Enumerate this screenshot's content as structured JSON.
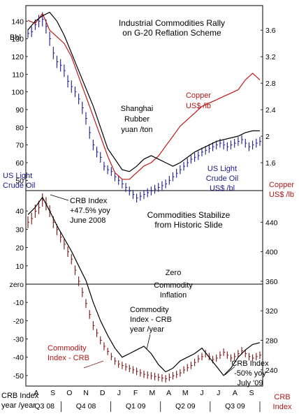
{
  "colors": {
    "oil": "#1a1a8c",
    "copper": "#c01818",
    "rubber": "#000000",
    "crb": "#7a1010",
    "crb_yoy": "#000000",
    "axis": "#000000"
  },
  "chart_data": [
    {
      "type": "line",
      "title": [
        "Industrial Commodities Rally",
        "on G-20 Reflation Scheme"
      ],
      "ylabel_left": "Bbl",
      "y_left_ticks": [
        "140",
        "130",
        "120",
        "110",
        "100",
        "90",
        "80",
        "70",
        "60",
        "50"
      ],
      "y_left_range": [
        45,
        148
      ],
      "y_right_ticks": [
        "3.6",
        "3.2",
        "2.8",
        "2.4",
        "2",
        "1.6"
      ],
      "y_right_range": [
        1.2,
        3.95
      ],
      "ylabel_right": [
        "Copper",
        "US$ /lb"
      ],
      "ylabel_left_bottom": [
        "US Light",
        "Crude Oil"
      ],
      "annotations": {
        "copper": [
          "Copper",
          "US$ /lb"
        ],
        "rubber": [
          "Shanghai",
          "Rubber",
          "yuan /ton"
        ],
        "oil": [
          "US Light",
          "Crude Oil",
          "US$ /bl"
        ]
      },
      "series": [
        {
          "name": "US Light Crude Oil US$ /bl",
          "axis": "left",
          "style": "hlc-bars",
          "x": [
            0,
            1,
            2,
            3,
            4,
            5,
            6,
            7,
            8,
            9,
            10,
            11,
            12,
            13,
            14,
            15,
            16,
            17,
            18,
            19,
            20,
            21,
            22,
            23,
            24,
            25,
            26,
            27,
            28,
            29,
            30,
            31,
            32,
            33,
            34,
            35,
            36,
            37,
            38,
            39,
            40,
            41,
            42,
            43,
            44,
            45,
            46,
            47,
            48,
            49,
            50,
            51,
            52,
            53,
            54,
            55,
            56,
            57,
            58,
            59,
            60,
            61,
            62,
            63,
            64
          ],
          "close": [
            133,
            134,
            138,
            140,
            141,
            137,
            130,
            122,
            117,
            115,
            112,
            106,
            103,
            100,
            96,
            91,
            85,
            77,
            70,
            66,
            63,
            58,
            56,
            55,
            52,
            50,
            48,
            46,
            44,
            42,
            40,
            41,
            42,
            43,
            44,
            45,
            46,
            47,
            48,
            50,
            52,
            54,
            56,
            58,
            60,
            62,
            63,
            64,
            66,
            67,
            68,
            69,
            70,
            71,
            70,
            69,
            70,
            71,
            72,
            73,
            71,
            69,
            70,
            71,
            72
          ],
          "range": [
            5,
            6,
            6,
            7,
            8,
            8,
            8,
            7,
            7,
            7,
            7,
            7,
            7,
            6,
            6,
            7,
            7,
            7,
            6,
            6,
            6,
            5,
            5,
            5,
            5,
            5,
            5,
            5,
            5,
            5,
            5,
            5,
            5,
            5,
            5,
            5,
            5,
            5,
            5,
            5,
            5,
            5,
            5,
            5,
            5,
            5,
            5,
            5,
            5,
            5,
            5,
            5,
            5,
            5,
            5,
            5,
            5,
            5,
            5,
            5,
            5,
            5,
            5,
            5,
            5
          ]
        },
        {
          "name": "Copper US$ /lb",
          "axis": "right",
          "x": [
            0,
            2,
            4,
            6,
            8,
            10,
            12,
            14,
            16,
            18,
            20,
            22,
            24,
            26,
            28,
            30,
            32,
            34,
            36,
            38,
            40,
            42,
            44,
            46,
            48,
            50,
            52,
            54,
            56,
            58,
            60,
            62,
            64
          ],
          "values": [
            3.75,
            3.7,
            3.85,
            3.6,
            3.5,
            3.4,
            3.2,
            2.9,
            2.6,
            2.3,
            2.0,
            1.7,
            1.45,
            1.35,
            1.35,
            1.45,
            1.55,
            1.6,
            1.7,
            1.85,
            2.0,
            2.15,
            2.25,
            2.35,
            2.45,
            2.5,
            2.55,
            2.6,
            2.65,
            2.7,
            2.85,
            2.95,
            2.85
          ]
        },
        {
          "name": "Shanghai Rubber yuan /ton",
          "axis": "left",
          "x": [
            0,
            2,
            4,
            6,
            8,
            10,
            12,
            14,
            16,
            18,
            20,
            22,
            24,
            26,
            28,
            30,
            32,
            34,
            36,
            38,
            40,
            42,
            44,
            46,
            48,
            50,
            52,
            54,
            56,
            58,
            60,
            62,
            64
          ],
          "values": [
            135,
            140,
            143,
            145,
            140,
            132,
            122,
            112,
            102,
            92,
            80,
            68,
            62,
            56,
            55,
            58,
            62,
            64,
            62,
            60,
            58,
            60,
            63,
            66,
            68,
            70,
            72,
            73,
            74,
            75,
            77,
            78,
            78
          ]
        }
      ]
    },
    {
      "type": "line",
      "title": [
        "Commodities Stabilize",
        "from Historic Slide"
      ],
      "xlabel": [
        "CRB Index",
        "year /year"
      ],
      "x_ticks": [
        "A",
        "S",
        "O",
        "N",
        "D",
        "J",
        "F",
        "M",
        "A",
        "M",
        "J",
        "J",
        "A",
        "S"
      ],
      "quarter_labels": [
        "Q3 08",
        "Q4 08",
        "Q1 09",
        "Q2 09",
        "Q3 09"
      ],
      "y_left_ticks": [
        "40",
        "30",
        "20",
        "10",
        "zero",
        "-10",
        "-20",
        "-30",
        "-40",
        "-50"
      ],
      "y_left_range": [
        -55,
        50
      ],
      "y_right_ticks": [
        "440",
        "400",
        "360",
        "320",
        "280",
        "240"
      ],
      "y_right_range": [
        220,
        480
      ],
      "ylabel_right": [
        "CRB",
        "Index"
      ],
      "zero_line_label": [
        "Zero",
        "Commodity",
        "Inflation"
      ],
      "annotations": {
        "peak": [
          "CRB Index",
          "+47.5% yoy",
          "June 2008"
        ],
        "crb_yoy": [
          "Commodity",
          "Index - CRB",
          "year /year"
        ],
        "crb": [
          "Commodity",
          "Index - CRB"
        ],
        "trough": [
          "CRB Index",
          "-50% yoy",
          "July '09"
        ]
      },
      "series": [
        {
          "name": "Commodity Index - CRB",
          "axis": "right",
          "style": "hlc-bars",
          "x": [
            0,
            1,
            2,
            3,
            4,
            5,
            6,
            7,
            8,
            9,
            10,
            11,
            12,
            13,
            14,
            15,
            16,
            17,
            18,
            19,
            20,
            21,
            22,
            23,
            24,
            25,
            26,
            27,
            28,
            29,
            30,
            31,
            32,
            33,
            34,
            35,
            36,
            37,
            38,
            39,
            40,
            41,
            42,
            43,
            44,
            45,
            46,
            47,
            48,
            49,
            50,
            51,
            52,
            53,
            54,
            55,
            56,
            57,
            58,
            59,
            60,
            61,
            62,
            63,
            64
          ],
          "close": [
            440,
            445,
            455,
            460,
            470,
            465,
            455,
            440,
            430,
            420,
            410,
            400,
            390,
            375,
            360,
            345,
            330,
            315,
            300,
            290,
            280,
            272,
            265,
            258,
            252,
            248,
            246,
            244,
            242,
            240,
            238,
            236,
            234,
            233,
            232,
            231,
            230,
            229,
            228,
            230,
            232,
            234,
            236,
            240,
            243,
            246,
            250,
            255,
            258,
            262,
            258,
            254,
            256,
            260,
            264,
            260,
            256,
            258,
            262,
            266,
            262,
            258,
            256,
            258,
            260
          ],
          "range": [
            16,
            16,
            18,
            18,
            18,
            18,
            16,
            16,
            15,
            15,
            14,
            14,
            14,
            13,
            13,
            13,
            12,
            12,
            12,
            11,
            11,
            11,
            10,
            10,
            10,
            10,
            10,
            10,
            10,
            10,
            10,
            10,
            10,
            10,
            10,
            10,
            10,
            10,
            10,
            10,
            10,
            10,
            10,
            10,
            10,
            10,
            10,
            10,
            10,
            10,
            10,
            10,
            10,
            10,
            10,
            10,
            10,
            10,
            10,
            10,
            10,
            10,
            10,
            10,
            10
          ]
        },
        {
          "name": "Commodity Index - CRB year /year",
          "axis": "left",
          "x": [
            0,
            2,
            4,
            6,
            8,
            10,
            12,
            14,
            16,
            18,
            20,
            22,
            24,
            26,
            28,
            30,
            32,
            34,
            36,
            38,
            40,
            42,
            44,
            46,
            48,
            50,
            52,
            54,
            56,
            58,
            60,
            62,
            64
          ],
          "values": [
            38,
            42,
            47.5,
            40,
            32,
            25,
            18,
            10,
            2,
            -10,
            -20,
            -28,
            -35,
            -40,
            -38,
            -36,
            -34,
            -38,
            -44,
            -48,
            -46,
            -42,
            -40,
            -38,
            -35,
            -40,
            -45,
            -50,
            -46,
            -40,
            -36,
            -33,
            -32
          ]
        }
      ]
    }
  ]
}
